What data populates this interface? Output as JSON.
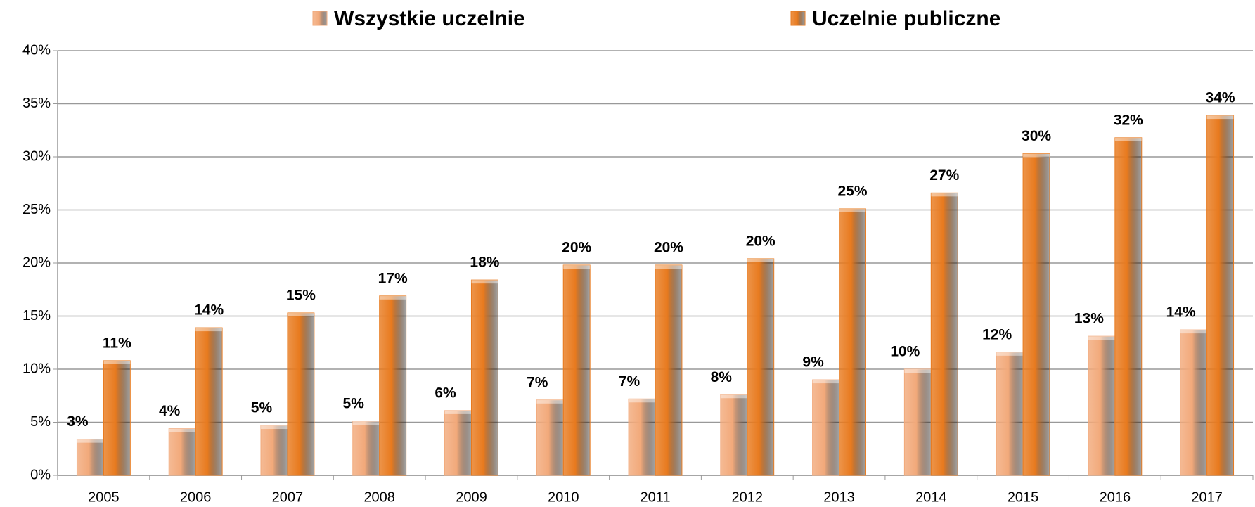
{
  "chart_data": {
    "type": "bar",
    "categories": [
      "2005",
      "2006",
      "2007",
      "2008",
      "2009",
      "2010",
      "2011",
      "2012",
      "2013",
      "2014",
      "2015",
      "2016",
      "2017"
    ],
    "series": [
      {
        "name": "Wszystkie uczelnie",
        "color": "#f2a97a",
        "values": [
          3.4,
          4.4,
          4.7,
          5.1,
          6.1,
          7.1,
          7.2,
          7.6,
          9.0,
          10.0,
          11.6,
          13.1,
          13.7
        ],
        "value_labels": [
          "3%",
          "4%",
          "5%",
          "5%",
          "6%",
          "7%",
          "7%",
          "8%",
          "9%",
          "10%",
          "12%",
          "13%",
          "14%"
        ]
      },
      {
        "name": "Uczelnie publiczne",
        "color": "#e87a1e",
        "values": [
          10.8,
          13.9,
          15.3,
          16.9,
          18.4,
          19.8,
          19.8,
          20.4,
          25.1,
          26.6,
          30.3,
          31.8,
          33.9
        ],
        "value_labels": [
          "11%",
          "14%",
          "15%",
          "17%",
          "18%",
          "20%",
          "20%",
          "20%",
          "25%",
          "27%",
          "30%",
          "32%",
          "34%"
        ]
      }
    ],
    "ylim": [
      0,
      40
    ],
    "yticks": [
      {
        "value": 0,
        "label": "0%"
      },
      {
        "value": 5,
        "label": "5%"
      },
      {
        "value": 10,
        "label": "10%"
      },
      {
        "value": 15,
        "label": "15%"
      },
      {
        "value": 20,
        "label": "20%"
      },
      {
        "value": 25,
        "label": "25%"
      },
      {
        "value": 30,
        "label": "30%"
      },
      {
        "value": 35,
        "label": "35%"
      },
      {
        "value": 40,
        "label": "40%"
      }
    ],
    "grid": true
  }
}
